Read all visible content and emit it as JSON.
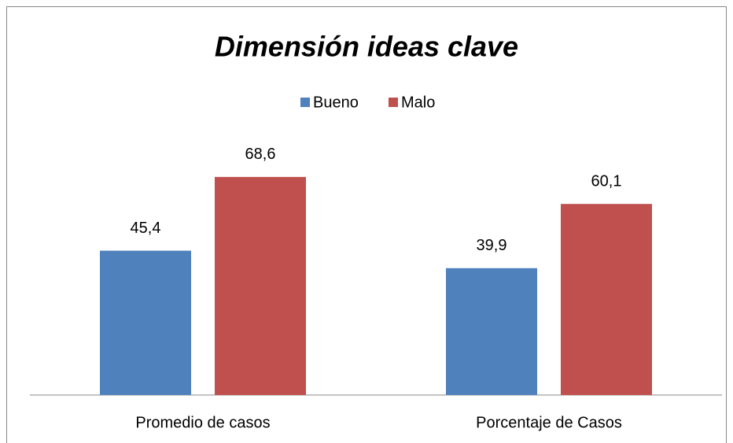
{
  "chart_data": {
    "type": "bar",
    "title": "Dimensión ideas clave",
    "categories": [
      "Promedio de casos",
      "Porcentaje de Casos"
    ],
    "series": [
      {
        "name": "Bueno",
        "color": "#4f81bd",
        "values": [
          45.4,
          39.9
        ],
        "value_labels": [
          "45,4",
          "39,9"
        ]
      },
      {
        "name": "Malo",
        "color": "#c0504d",
        "values": [
          68.6,
          60.1
        ],
        "value_labels": [
          "68,6",
          "60,1"
        ]
      }
    ],
    "legend": "top"
  }
}
